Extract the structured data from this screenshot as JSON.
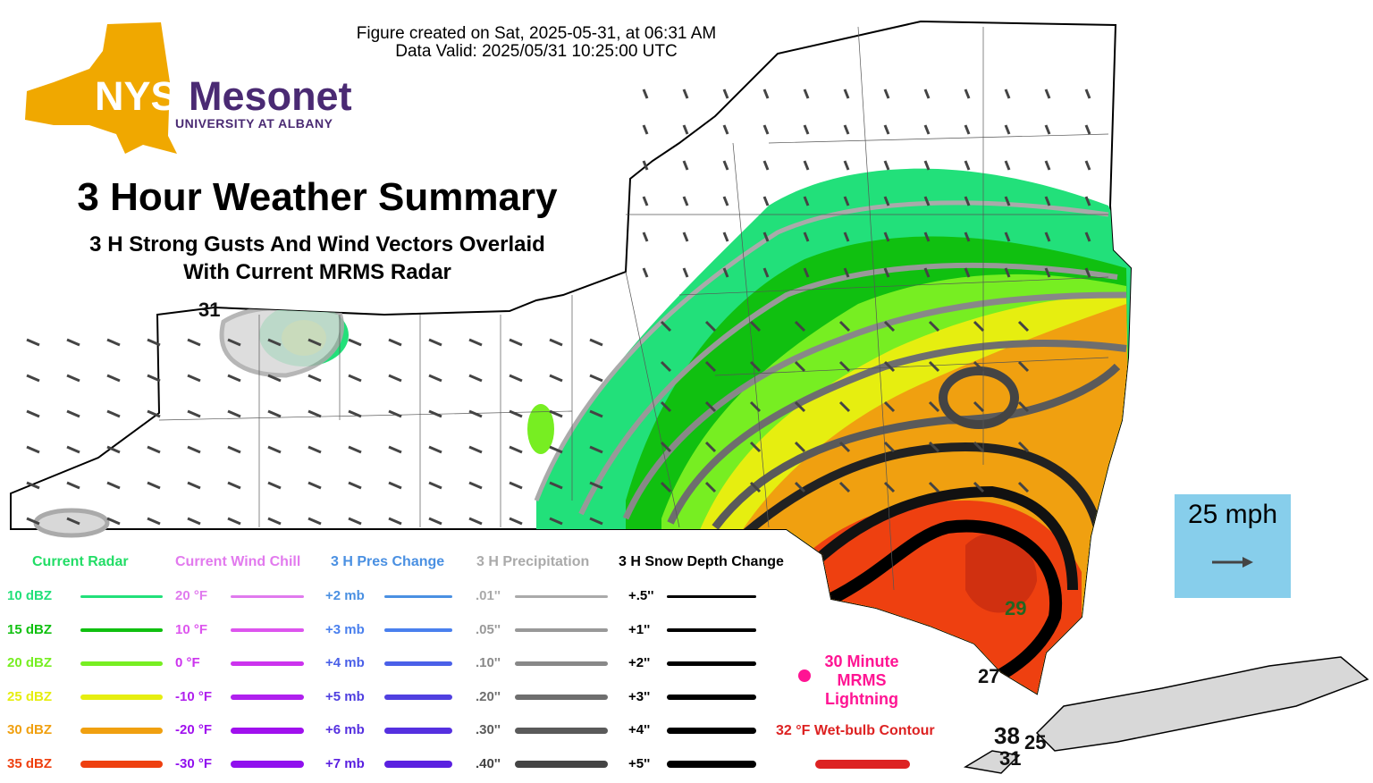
{
  "header": {
    "created": "Figure created on Sat, 2025-05-31, at 06:31 AM",
    "valid": "Data Valid: 2025/05/31 10:25:00 UTC"
  },
  "logo": {
    "nys": "NYS",
    "mesonet": "Mesonet",
    "university": "UNIVERSITY AT ALBANY",
    "colors": {
      "state": "#f0a800",
      "text": "#4a2a73"
    }
  },
  "title": "3 Hour Weather Summary",
  "subtitle_line1": "3 H Strong Gusts And Wind Vectors Overlaid",
  "subtitle_line2": "With Current MRMS Radar",
  "scale": {
    "label": "25 mph",
    "color": "#87ceeb"
  },
  "gusts": [
    {
      "value": "31"
    },
    {
      "value": "29"
    },
    {
      "value": "27"
    },
    {
      "value": "38"
    },
    {
      "value": "25"
    },
    {
      "value": "31"
    }
  ],
  "legend": {
    "radar": {
      "title": "Current Radar",
      "color": "#22dd66",
      "rows": [
        {
          "label": "10 dBZ",
          "color": "#22e07a"
        },
        {
          "label": "15 dBZ",
          "color": "#10c010"
        },
        {
          "label": "20 dBZ",
          "color": "#77ee22"
        },
        {
          "label": "25 dBZ",
          "color": "#e6ee10"
        },
        {
          "label": "30 dBZ",
          "color": "#f0a010"
        },
        {
          "label": "35 dBZ",
          "color": "#ee4010"
        }
      ]
    },
    "wind_chill": {
      "title": "Current Wind Chill",
      "color": "#e27aee",
      "rows": [
        {
          "label": "20 °F",
          "color": "#e07aee"
        },
        {
          "label": "10 °F",
          "color": "#dd55ee"
        },
        {
          "label": "0 °F",
          "color": "#cc33ee"
        },
        {
          "label": "-10 °F",
          "color": "#b020ee"
        },
        {
          "label": "-20 °F",
          "color": "#a010ee"
        },
        {
          "label": "-30 °F",
          "color": "#9010ee"
        }
      ]
    },
    "pressure": {
      "title": "3 H Pres Change",
      "color": "#4a90e2",
      "rows": [
        {
          "label": "+2 mb",
          "color": "#4a90e2"
        },
        {
          "label": "+3 mb",
          "color": "#4a80ee"
        },
        {
          "label": "+4 mb",
          "color": "#4a60e8"
        },
        {
          "label": "+5 mb",
          "color": "#5040e0"
        },
        {
          "label": "+6 mb",
          "color": "#5530e0"
        },
        {
          "label": "+7 mb",
          "color": "#5a20e0"
        }
      ]
    },
    "precip": {
      "title": "3 H Precipitation",
      "color": "#aaaaaa",
      "rows": [
        {
          "label": ".01''",
          "color": "#aaaaaa"
        },
        {
          "label": ".05''",
          "color": "#999999"
        },
        {
          "label": ".10''",
          "color": "#888888"
        },
        {
          "label": ".20''",
          "color": "#6e6e6e"
        },
        {
          "label": ".30''",
          "color": "#5a5a5a"
        },
        {
          "label": ".40''",
          "color": "#444444"
        }
      ]
    },
    "snow": {
      "title": "3 H Snow Depth Change",
      "color": "#000000",
      "rows": [
        {
          "label": "+.5''",
          "color": "#000000"
        },
        {
          "label": "+1''",
          "color": "#000000"
        },
        {
          "label": "+2''",
          "color": "#000000"
        },
        {
          "label": "+3''",
          "color": "#000000"
        },
        {
          "label": "+4''",
          "color": "#000000"
        },
        {
          "label": "+5''",
          "color": "#000000"
        }
      ]
    },
    "lightning": {
      "label_line1": "30 Minute",
      "label_line2": "MRMS",
      "label_line3": "Lightning",
      "color": "#ff1493"
    },
    "wetbulb": {
      "label": "32 °F Wet-bulb Contour",
      "color": "#dd2222"
    }
  }
}
